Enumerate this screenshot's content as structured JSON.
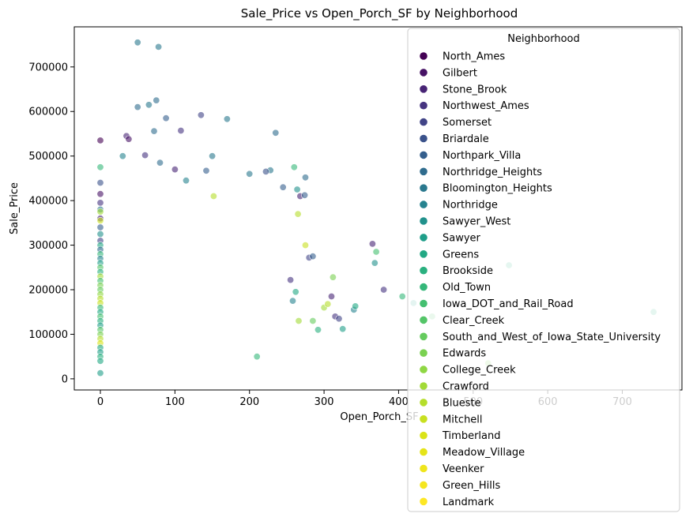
{
  "chart_data": {
    "type": "scatter",
    "title": "Sale_Price vs Open_Porch_SF by Neighborhood",
    "xlabel": "Open_Porch_SF",
    "ylabel": "Sale_Price",
    "xlim": [
      -35,
      780
    ],
    "ylim": [
      -25000,
      790000
    ],
    "xticks": [
      0,
      100,
      200,
      300,
      400,
      500,
      600,
      700
    ],
    "yticks": [
      0,
      100000,
      200000,
      300000,
      400000,
      500000,
      600000,
      700000
    ],
    "grid": false,
    "legend": {
      "title": "Neighborhood",
      "placement": "upper right"
    },
    "colormap": "viridis",
    "marker_alpha": 0.6,
    "series": [
      {
        "name": "North_Ames",
        "color": "#440154"
      },
      {
        "name": "Gilbert",
        "color": "#471365"
      },
      {
        "name": "Stone_Brook",
        "color": "#482475"
      },
      {
        "name": "Northwest_Ames",
        "color": "#463480"
      },
      {
        "name": "Somerset",
        "color": "#414487"
      },
      {
        "name": "Briardale",
        "color": "#3b528b"
      },
      {
        "name": "Northpark_Villa",
        "color": "#355f8d"
      },
      {
        "name": "Northridge_Heights",
        "color": "#2f6c8e"
      },
      {
        "name": "Bloomington_Heights",
        "color": "#2a788e"
      },
      {
        "name": "Northridge",
        "color": "#26838f"
      },
      {
        "name": "Sawyer_West",
        "color": "#21918c"
      },
      {
        "name": "Sawyer",
        "color": "#1f9e89"
      },
      {
        "name": "Greens",
        "color": "#22a884"
      },
      {
        "name": "Brookside",
        "color": "#2ab07f"
      },
      {
        "name": "Old_Town",
        "color": "#35b779"
      },
      {
        "name": "Iowa_DOT_and_Rail_Road",
        "color": "#44bf70"
      },
      {
        "name": "Clear_Creek",
        "color": "#54c568"
      },
      {
        "name": "South_and_West_of_Iowa_State_University",
        "color": "#65cb5e"
      },
      {
        "name": "Edwards",
        "color": "#7ad151"
      },
      {
        "name": "College_Creek",
        "color": "#8fd744"
      },
      {
        "name": "Crawford",
        "color": "#a2da37"
      },
      {
        "name": "Blueste",
        "color": "#b5de2b"
      },
      {
        "name": "Mitchell",
        "color": "#c8e020"
      },
      {
        "name": "Timberland",
        "color": "#dae319"
      },
      {
        "name": "Meadow_Village",
        "color": "#e5e419"
      },
      {
        "name": "Veenker",
        "color": "#efe51c"
      },
      {
        "name": "Green_Hills",
        "color": "#f5e61f"
      },
      {
        "name": "Landmark",
        "color": "#fde725"
      }
    ],
    "points": [
      [
        0,
        535000,
        0
      ],
      [
        0,
        440000,
        5
      ],
      [
        0,
        415000,
        1
      ],
      [
        0,
        395000,
        3
      ],
      [
        0,
        380000,
        8
      ],
      [
        0,
        360000,
        2
      ],
      [
        0,
        340000,
        6
      ],
      [
        0,
        325000,
        10
      ],
      [
        0,
        310000,
        4
      ],
      [
        0,
        300000,
        12
      ],
      [
        0,
        290000,
        7
      ],
      [
        0,
        280000,
        14
      ],
      [
        0,
        270000,
        9
      ],
      [
        0,
        260000,
        11
      ],
      [
        0,
        250000,
        16
      ],
      [
        0,
        240000,
        13
      ],
      [
        0,
        230000,
        20
      ],
      [
        0,
        220000,
        15
      ],
      [
        0,
        210000,
        18
      ],
      [
        0,
        200000,
        17
      ],
      [
        0,
        190000,
        19
      ],
      [
        0,
        180000,
        21
      ],
      [
        0,
        170000,
        22
      ],
      [
        0,
        160000,
        14
      ],
      [
        0,
        150000,
        12
      ],
      [
        0,
        140000,
        15
      ],
      [
        0,
        130000,
        13
      ],
      [
        0,
        120000,
        11
      ],
      [
        0,
        110000,
        16
      ],
      [
        0,
        100000,
        18
      ],
      [
        0,
        90000,
        21
      ],
      [
        0,
        80000,
        23
      ],
      [
        0,
        70000,
        12
      ],
      [
        0,
        60000,
        11
      ],
      [
        0,
        50000,
        13
      ],
      [
        0,
        40000,
        12
      ],
      [
        0,
        13000,
        11
      ],
      [
        0,
        475000,
        14
      ],
      [
        0,
        375000,
        20
      ],
      [
        0,
        355000,
        22
      ],
      [
        50,
        755000,
        8
      ],
      [
        78,
        745000,
        8
      ],
      [
        75,
        625000,
        7
      ],
      [
        65,
        615000,
        8
      ],
      [
        50,
        610000,
        7
      ],
      [
        88,
        585000,
        6
      ],
      [
        135,
        592000,
        4
      ],
      [
        170,
        583000,
        8
      ],
      [
        108,
        557000,
        3
      ],
      [
        72,
        556000,
        7
      ],
      [
        235,
        552000,
        7
      ],
      [
        35,
        545000,
        2
      ],
      [
        38,
        538000,
        1
      ],
      [
        60,
        502000,
        3
      ],
      [
        150,
        500000,
        8
      ],
      [
        30,
        500000,
        9
      ],
      [
        100,
        470000,
        2
      ],
      [
        80,
        485000,
        7
      ],
      [
        228,
        468000,
        8
      ],
      [
        222,
        465000,
        5
      ],
      [
        200,
        460000,
        8
      ],
      [
        142,
        467000,
        6
      ],
      [
        275,
        452000,
        7
      ],
      [
        260,
        475000,
        14
      ],
      [
        115,
        445000,
        9
      ],
      [
        245,
        430000,
        6
      ],
      [
        264,
        425000,
        10
      ],
      [
        152,
        410000,
        21
      ],
      [
        268,
        410000,
        2
      ],
      [
        274,
        412000,
        6
      ],
      [
        365,
        303000,
        2
      ],
      [
        370,
        285000,
        15
      ],
      [
        368,
        260000,
        10
      ],
      [
        380,
        200000,
        3
      ],
      [
        405,
        185000,
        14
      ],
      [
        420,
        170000,
        11
      ],
      [
        445,
        140000,
        16
      ],
      [
        520,
        35000,
        18
      ],
      [
        548,
        255000,
        13
      ],
      [
        742,
        150000,
        13
      ],
      [
        310,
        185000,
        2
      ],
      [
        312,
        228000,
        18
      ],
      [
        315,
        140000,
        3
      ],
      [
        320,
        135000,
        4
      ],
      [
        325,
        112000,
        11
      ],
      [
        340,
        155000,
        9
      ],
      [
        342,
        163000,
        12
      ],
      [
        300,
        160000,
        20
      ],
      [
        305,
        168000,
        21
      ],
      [
        292,
        110000,
        13
      ],
      [
        210,
        50000,
        14
      ],
      [
        285,
        130000,
        17
      ],
      [
        280,
        272000,
        4
      ],
      [
        285,
        275000,
        6
      ],
      [
        275,
        300000,
        22
      ],
      [
        265,
        370000,
        21
      ],
      [
        266,
        130000,
        20
      ],
      [
        255,
        222000,
        3
      ],
      [
        262,
        195000,
        12
      ],
      [
        258,
        175000,
        9
      ]
    ]
  }
}
